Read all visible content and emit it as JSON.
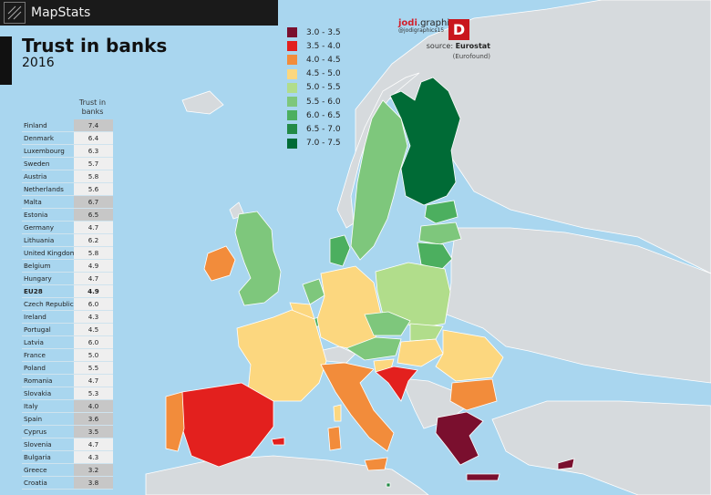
{
  "header": {
    "brand": "MapStats"
  },
  "title": "Trust in banks",
  "year": "2016",
  "table": {
    "header": "Trust in banks",
    "rows": [
      {
        "country": "Finland",
        "value": "7.4",
        "shade": true
      },
      {
        "country": "Denmark",
        "value": "6.4",
        "shade": false
      },
      {
        "country": "Luxembourg",
        "value": "6.3",
        "shade": false
      },
      {
        "country": "Sweden",
        "value": "5.7",
        "shade": false
      },
      {
        "country": "Austria",
        "value": "5.8",
        "shade": false
      },
      {
        "country": "Netherlands",
        "value": "5.6",
        "shade": false
      },
      {
        "country": "Malta",
        "value": "6.7",
        "shade": true
      },
      {
        "country": "Estonia",
        "value": "6.5",
        "shade": true
      },
      {
        "country": "Germany",
        "value": "4.7",
        "shade": false
      },
      {
        "country": "Lithuania",
        "value": "6.2",
        "shade": false
      },
      {
        "country": "United Kingdom",
        "value": "5.8",
        "shade": false
      },
      {
        "country": "Belgium",
        "value": "4.9",
        "shade": false
      },
      {
        "country": "Hungary",
        "value": "4.7",
        "shade": false
      },
      {
        "country": "EU28",
        "value": "4.9",
        "shade": false,
        "eu": true
      },
      {
        "country": "Czech Republic",
        "value": "6.0",
        "shade": false
      },
      {
        "country": "Ireland",
        "value": "4.3",
        "shade": false
      },
      {
        "country": "Portugal",
        "value": "4.5",
        "shade": false
      },
      {
        "country": "Latvia",
        "value": "6.0",
        "shade": false
      },
      {
        "country": "France",
        "value": "5.0",
        "shade": false
      },
      {
        "country": "Poland",
        "value": "5.5",
        "shade": false
      },
      {
        "country": "Romania",
        "value": "4.7",
        "shade": false
      },
      {
        "country": "Slovakia",
        "value": "5.3",
        "shade": false
      },
      {
        "country": "Italy",
        "value": "4.0",
        "shade": true
      },
      {
        "country": "Spain",
        "value": "3.6",
        "shade": true
      },
      {
        "country": "Cyprus",
        "value": "3.5",
        "shade": true
      },
      {
        "country": "Slovenia",
        "value": "4.7",
        "shade": false
      },
      {
        "country": "Bulgaria",
        "value": "4.3",
        "shade": false
      },
      {
        "country": "Greece",
        "value": "3.2",
        "shade": true
      },
      {
        "country": "Croatia",
        "value": "3.8",
        "shade": true
      }
    ]
  },
  "legend": [
    {
      "label": "3.0 - 3.5",
      "color": "#7a0f2e"
    },
    {
      "label": "3.5 - 4.0",
      "color": "#e3201e"
    },
    {
      "label": "4.0 - 4.5",
      "color": "#f28c3b"
    },
    {
      "label": "4.5 - 5.0",
      "color": "#fcd77f"
    },
    {
      "label": "5.0 - 5.5",
      "color": "#b1dd8b"
    },
    {
      "label": "5.5 - 6.0",
      "color": "#7ec77c"
    },
    {
      "label": "6.0 - 6.5",
      "color": "#4caf5f"
    },
    {
      "label": "6.5 - 7.0",
      "color": "#238a46"
    },
    {
      "label": "7.0 - 7.5",
      "color": "#006b36"
    }
  ],
  "credit": {
    "name_bold": "jodi",
    "name_rest": ".graphics",
    "handle": "@jodigraphics15",
    "badge": "D",
    "source_label": "source: ",
    "source_name": "Eurostat",
    "source_note": "(Eurofound)"
  },
  "colors": {
    "non_eu_land": "#d6dadd",
    "sea": "#a9d6ef",
    "border": "#ffffff"
  }
}
